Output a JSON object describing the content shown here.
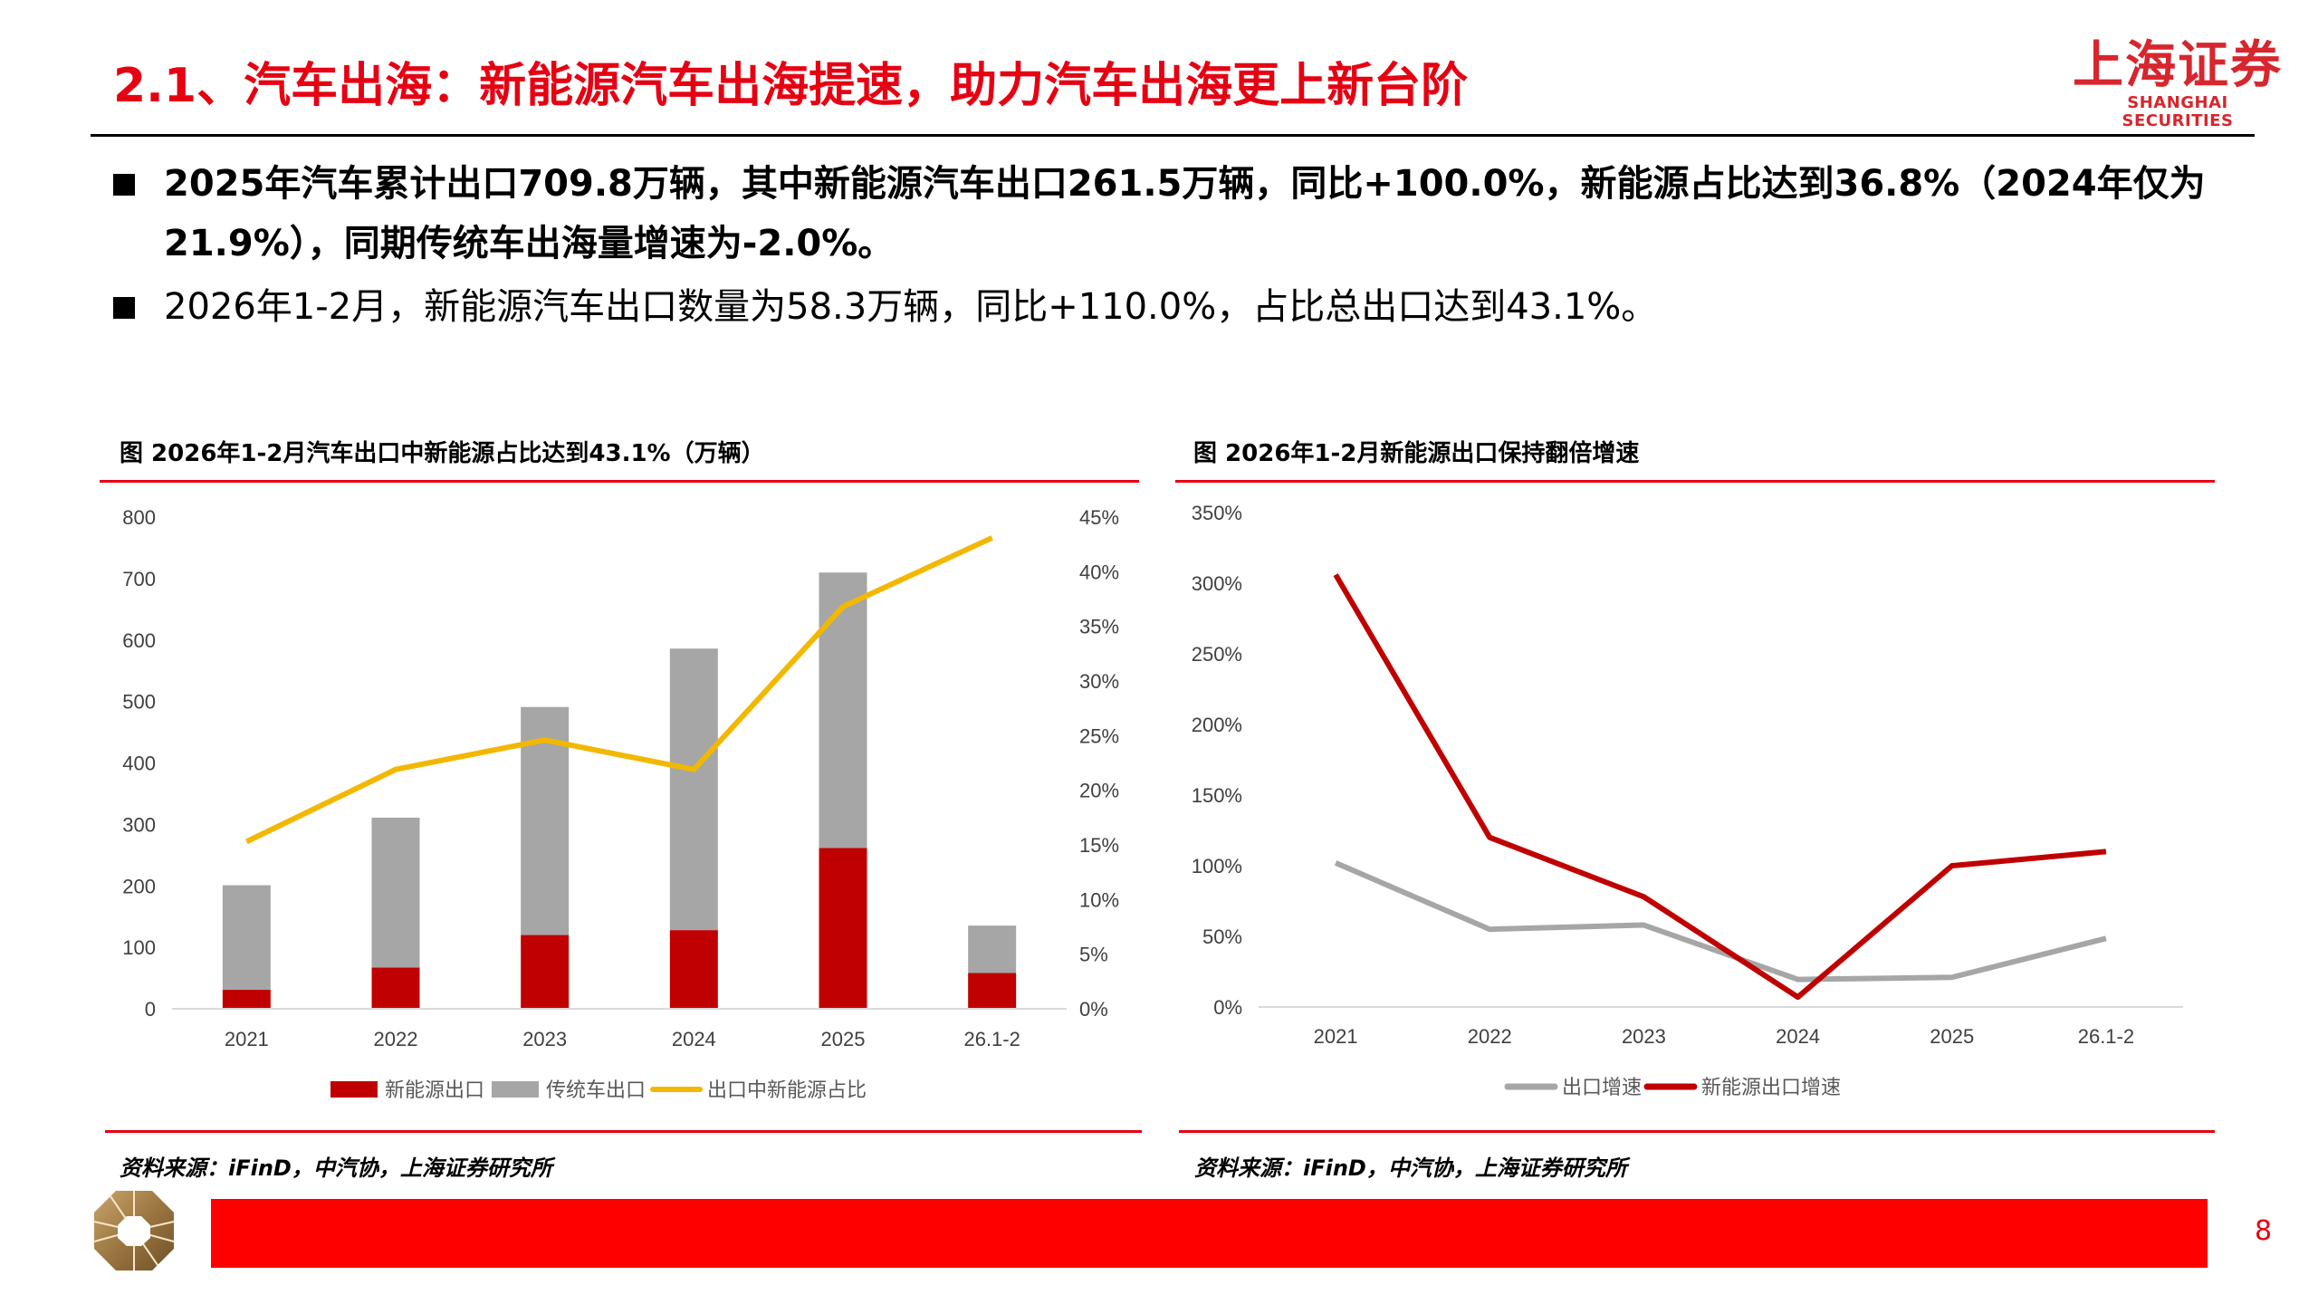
{
  "header": {
    "title": "2.1、汽车出海：新能源汽车出海提速，助力汽车出海更上新台阶",
    "logo_cn": "上海证券",
    "logo_en": "SHANGHAI SECURITIES"
  },
  "bullets": [
    {
      "text": "2025年汽车累计出口709.8万辆，其中新能源汽车出口261.5万辆，同比+100.0%，新能源占比达到36.8%（2024年仅为",
      "text2": "21.9%），同期传统车出海量增速为-2.0%。"
    },
    {
      "text": "2026年1-2月，新能源汽车出口数量为58.3万辆，同比+110.0%，占比总出口达到43.1%。"
    }
  ],
  "footer": {
    "page": "8"
  },
  "colors": {
    "accent": "#e60012",
    "nev": "#c00000",
    "traditional": "#a6a6a6",
    "share": "#f2b800",
    "footer_bar": "#ff0000"
  },
  "chart_data": [
    {
      "type": "bar",
      "title": "图  2026年1-2月汽车出口中新能源占比达到43.1%（万辆）",
      "source": "资料来源：iFinD，中汽协，上海证券研究所",
      "categories": [
        "2021",
        "2022",
        "2023",
        "2024",
        "2025",
        "26.1-2"
      ],
      "stacked": true,
      "series": [
        {
          "name": "新能源出口",
          "kind": "bar",
          "axis": "left",
          "color": "#c00000",
          "values": [
            31,
            67,
            120,
            128,
            261.5,
            58.3
          ]
        },
        {
          "name": "传统车出口",
          "kind": "bar",
          "axis": "left",
          "color": "#a6a6a6",
          "values": [
            170,
            244,
            371,
            458,
            448.3,
            77
          ]
        },
        {
          "name": "出口中新能源占比",
          "kind": "line",
          "axis": "right",
          "color": "#f2b800",
          "values": [
            15.3,
            21.9,
            24.6,
            21.9,
            36.8,
            43.1
          ]
        }
      ],
      "ylim": [
        0,
        800
      ],
      "yticks": [
        "0",
        "100",
        "200",
        "300",
        "400",
        "500",
        "600",
        "700",
        "800"
      ],
      "y2lim": [
        0,
        45
      ],
      "y2ticks": [
        "0%",
        "5%",
        "10%",
        "15%",
        "20%",
        "25%",
        "30%",
        "35%",
        "40%",
        "45%"
      ],
      "grid": false,
      "legend": "bottom"
    },
    {
      "type": "line",
      "title": "图  2026年1-2月新能源出口保持翻倍增速",
      "source": "资料来源：iFinD，中汽协，上海证券研究所",
      "categories": [
        "2021",
        "2022",
        "2023",
        "2024",
        "2025",
        "26.1-2"
      ],
      "series": [
        {
          "name": "出口增速",
          "color": "#a6a6a6",
          "values": [
            102,
            55,
            58,
            19.5,
            21,
            48.5
          ]
        },
        {
          "name": "新能源出口增速",
          "color": "#c00000",
          "values": [
            306,
            120,
            78,
            7,
            100,
            110
          ]
        }
      ],
      "ylim": [
        0,
        350
      ],
      "yticks": [
        "0%",
        "50%",
        "100%",
        "150%",
        "200%",
        "250%",
        "300%",
        "350%"
      ],
      "grid": false,
      "legend": "bottom"
    }
  ]
}
